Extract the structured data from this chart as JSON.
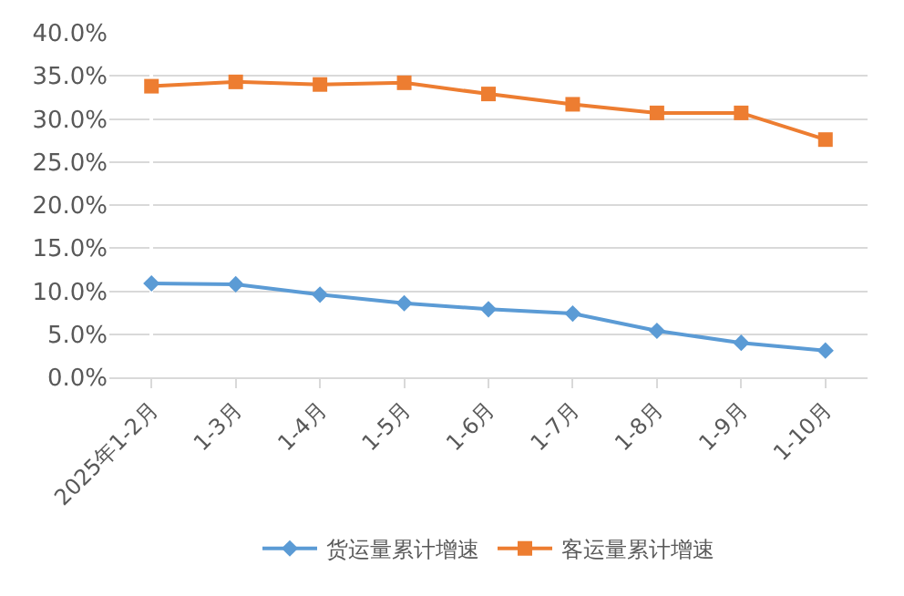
{
  "chart_data": {
    "type": "line",
    "categories": [
      "2025年1-2月",
      "1-3月",
      "1-4月",
      "1-5月",
      "1-6月",
      "1-7月",
      "1-8月",
      "1-9月",
      "1-10月"
    ],
    "series": [
      {
        "name": "货运量累计增速",
        "color": "#5b9bd5",
        "marker": "diamond",
        "values": [
          10.9,
          10.8,
          9.6,
          8.6,
          7.9,
          7.4,
          5.4,
          4.0,
          3.1
        ]
      },
      {
        "name": "客运量累计增速",
        "color": "#ed7d31",
        "marker": "square",
        "values": [
          33.8,
          34.3,
          34.0,
          34.2,
          32.9,
          31.7,
          30.7,
          30.7,
          27.6
        ]
      }
    ],
    "ylim": [
      0,
      40
    ],
    "yticks": [
      {
        "value": 0,
        "label": "0.0%"
      },
      {
        "value": 5,
        "label": "5.0%"
      },
      {
        "value": 10,
        "label": "10.0%"
      },
      {
        "value": 15,
        "label": "15.0%"
      },
      {
        "value": 20,
        "label": "20.0%"
      },
      {
        "value": 25,
        "label": "25.0%"
      },
      {
        "value": 30,
        "label": "30.0%"
      },
      {
        "value": 35,
        "label": "35.0%"
      },
      {
        "value": 40,
        "label": "40.0%"
      }
    ],
    "grid": "y",
    "legend": "bottom",
    "line_style": "solid"
  }
}
